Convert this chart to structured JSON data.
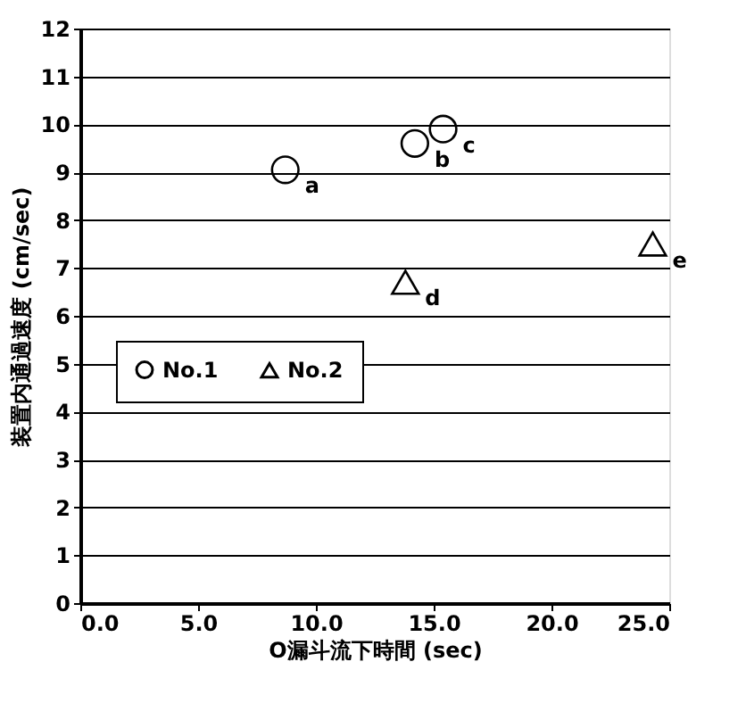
{
  "chart_data": {
    "type": "scatter",
    "xlabel": "O漏斗流下時間 (sec)",
    "ylabel": "装置内通過速度 (cm/sec)",
    "xlim": [
      0,
      25
    ],
    "xticks": [
      {
        "value": 0,
        "label": "0.0"
      },
      {
        "value": 5,
        "label": "5.0"
      },
      {
        "value": 10,
        "label": "10.0"
      },
      {
        "value": 15,
        "label": "15.0"
      },
      {
        "value": 20,
        "label": "20.0"
      },
      {
        "value": 25,
        "label": "25.0"
      }
    ],
    "ylim": [
      0,
      12
    ],
    "yticks": [
      0,
      1,
      2,
      3,
      4,
      5,
      6,
      7,
      8,
      9,
      10,
      11,
      12
    ],
    "grid": "y",
    "legend": "left",
    "series": [
      {
        "name": "No.1",
        "color": "#000000",
        "marker": "circle",
        "x": [
          8.7,
          14.2,
          15.4
        ],
        "values": [
          9.05,
          9.6,
          9.9
        ]
      },
      {
        "name": "No.2",
        "color": "#000000",
        "marker": "triangle",
        "x": [
          13.8,
          24.3
        ],
        "values": [
          6.7,
          7.5
        ]
      }
    ],
    "annotations": [
      {
        "text": "a",
        "x": 8.7,
        "y": 9.05
      },
      {
        "text": "b",
        "x": 14.2,
        "y": 9.6
      },
      {
        "text": "c",
        "x": 15.4,
        "y": 9.9
      },
      {
        "text": "d",
        "x": 13.8,
        "y": 6.7
      },
      {
        "text": "e",
        "x": 24.3,
        "y": 7.5
      }
    ]
  }
}
